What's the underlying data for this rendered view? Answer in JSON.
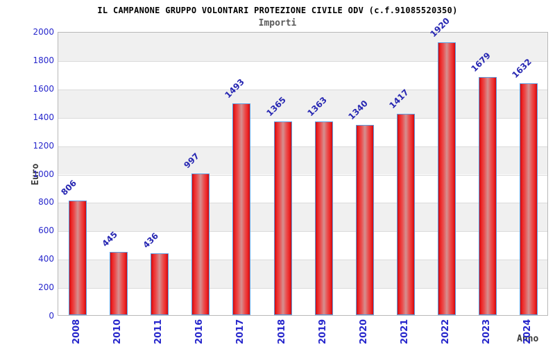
{
  "header": {
    "title": "IL CAMPANONE GRUPPO VOLONTARI PROTEZIONE CIVILE ODV (c.f.91085520350)",
    "subtitle": "Importi"
  },
  "chart_data": {
    "type": "bar",
    "title": "IL CAMPANONE GRUPPO VOLONTARI PROTEZIONE CIVILE ODV (c.f.91085520350)",
    "subtitle": "Importi",
    "xlabel": "Anno",
    "ylabel": "Euro",
    "categories": [
      "2008",
      "2010",
      "2011",
      "2016",
      "2017",
      "2018",
      "2019",
      "2020",
      "2021",
      "2022",
      "2023",
      "2024"
    ],
    "values": [
      806,
      445,
      436,
      997,
      1493,
      1365,
      1363,
      1340,
      1417,
      1920,
      1679,
      1632
    ],
    "ylim": [
      0,
      2000
    ],
    "yticks": [
      0,
      200,
      400,
      600,
      800,
      1000,
      1200,
      1400,
      1600,
      1800,
      2000
    ],
    "grid": true,
    "alternating_bands": true,
    "legend": false,
    "colors": {
      "bar_fill": "#ee2a2a",
      "bar_fill_center": "#d59090",
      "bar_border": "#5c9ce0",
      "tick_label": "#2727cc",
      "value_label": "#2727b2",
      "band_gray": "#f0f0f0",
      "gridline": "#dadada",
      "title": "#000000",
      "subtitle": "#5a5a5a"
    }
  }
}
